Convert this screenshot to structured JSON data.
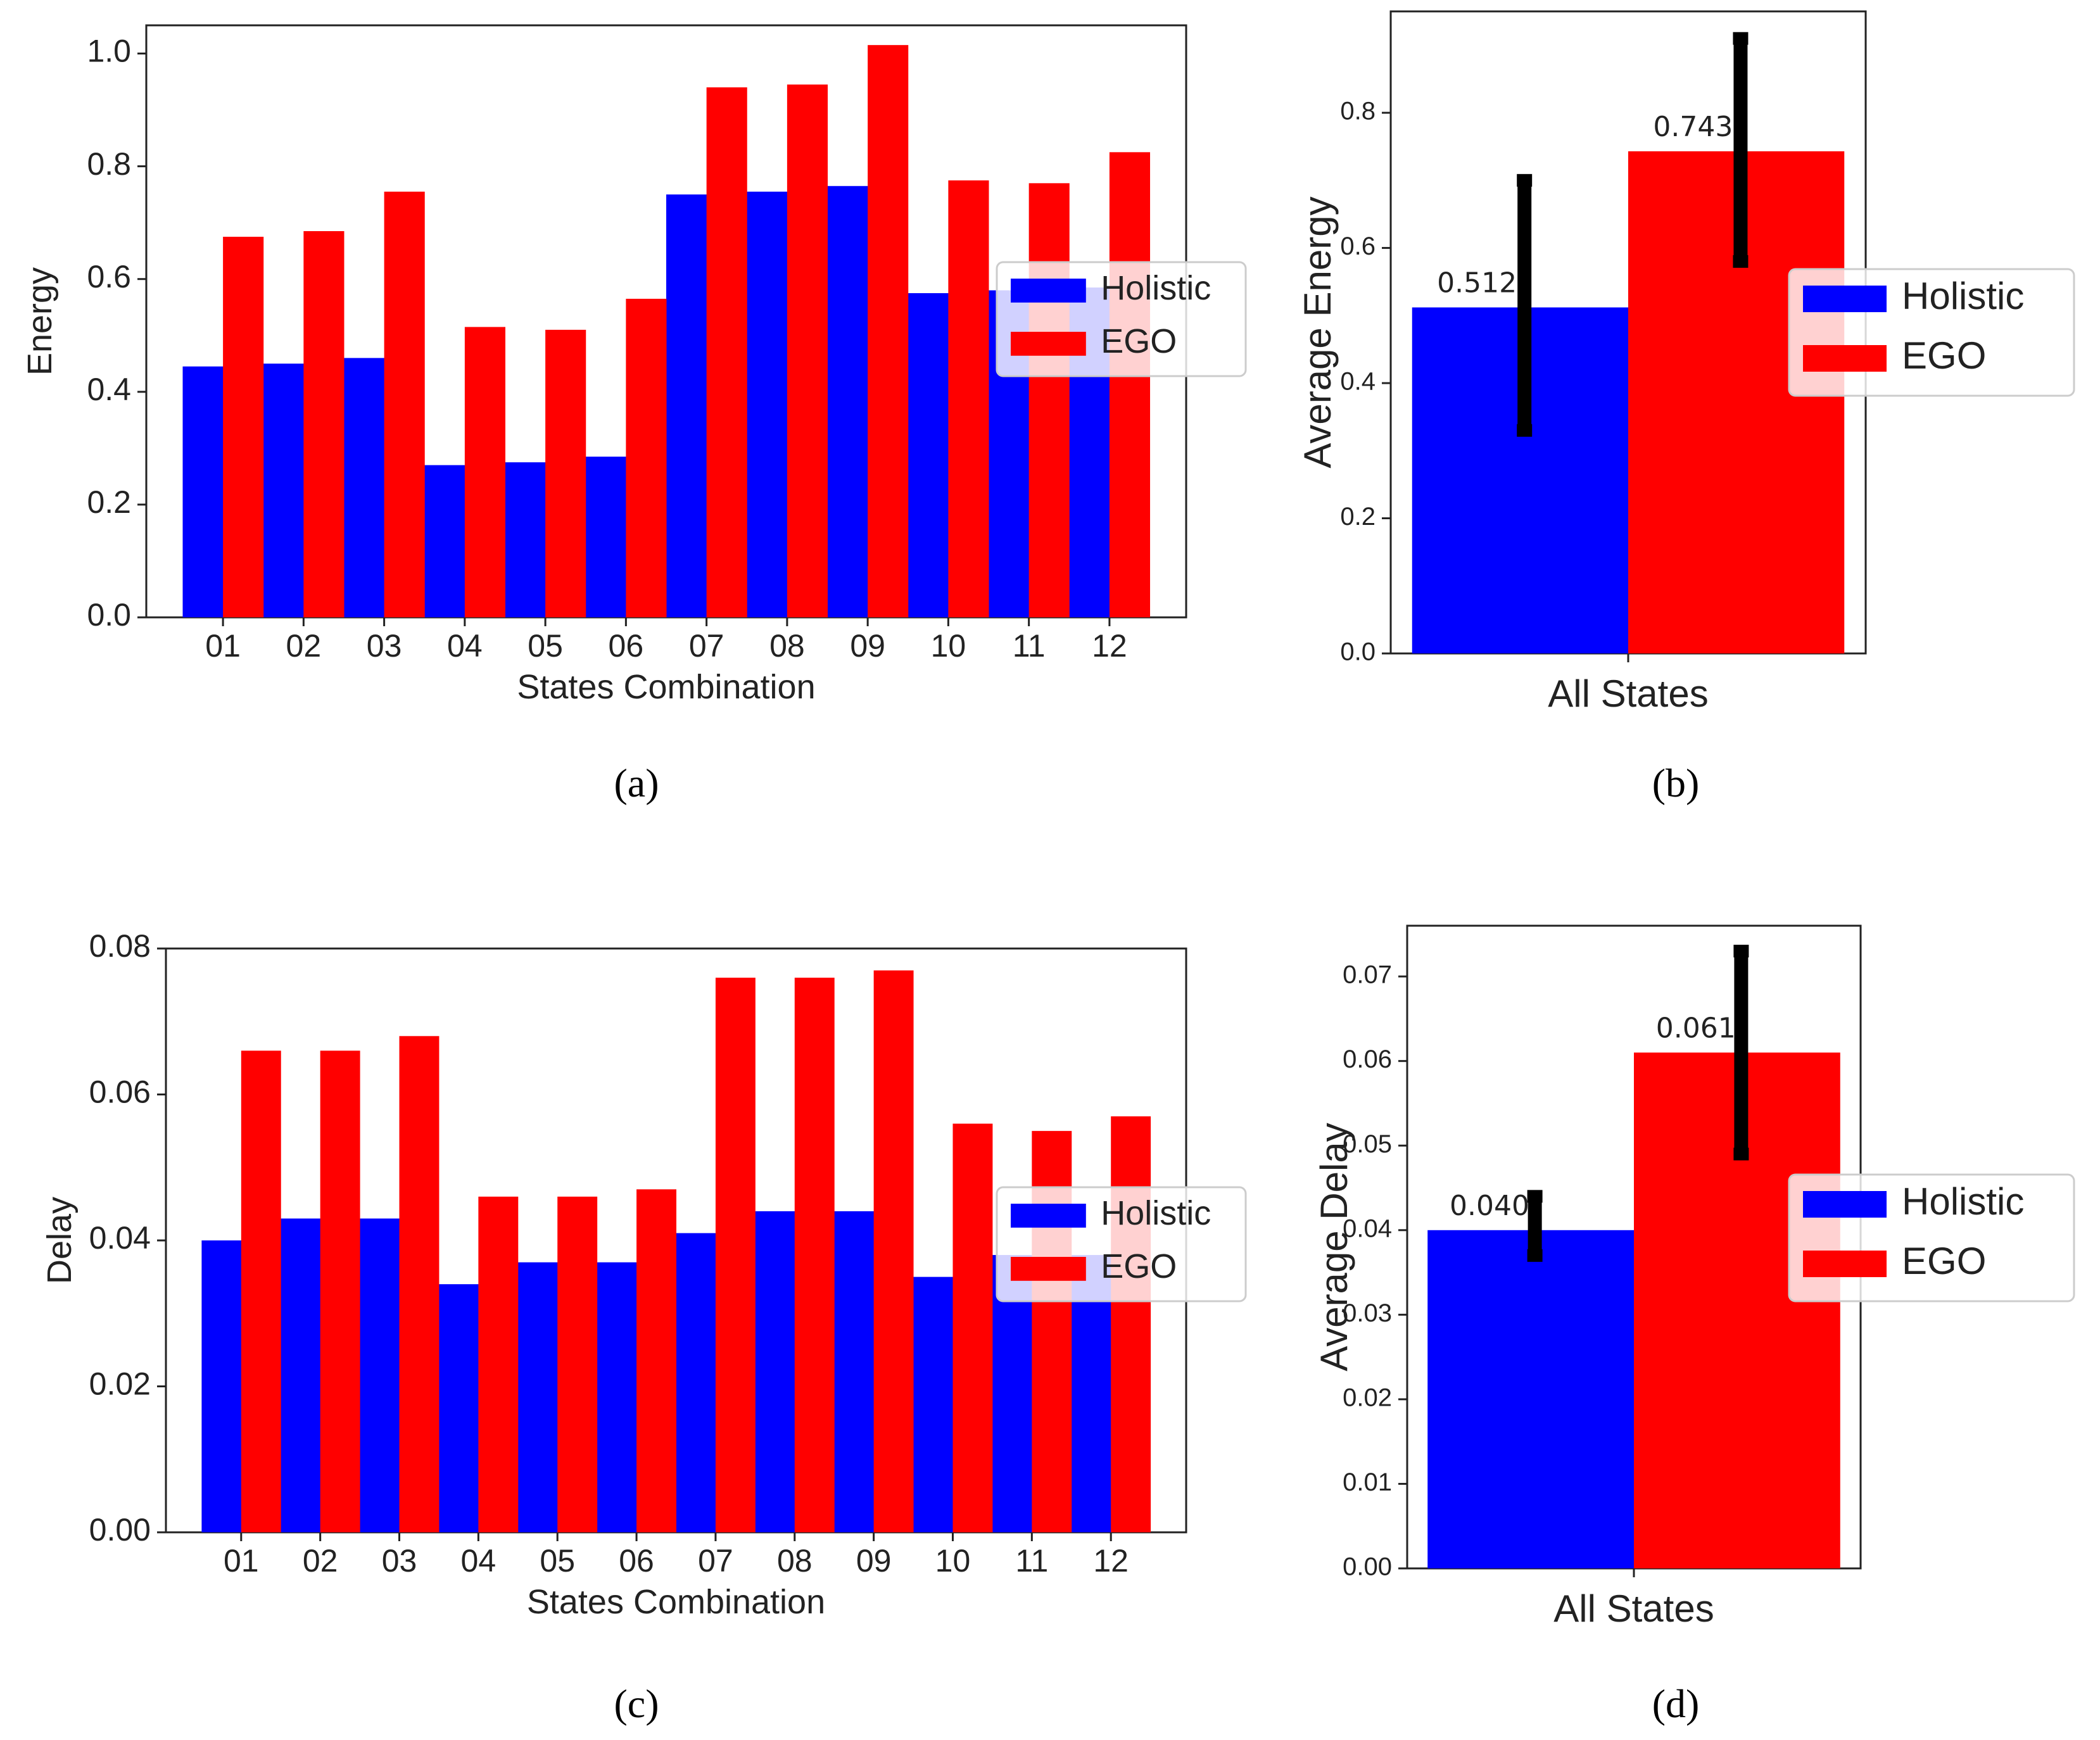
{
  "panels": [
    "(a)",
    "(b)",
    "(c)",
    "(d)"
  ],
  "chart_data": [
    {
      "id": "a",
      "type": "bar",
      "caption": "(a)",
      "xlabel": "States Combination",
      "ylabel": "Energy",
      "ylim": [
        0,
        1.05
      ],
      "yticks": [
        "0.0",
        "0.2",
        "0.4",
        "0.6",
        "0.8",
        "1.0"
      ],
      "ytick_values": [
        0,
        0.2,
        0.4,
        0.6,
        0.8,
        1.0
      ],
      "categories": [
        "01",
        "02",
        "03",
        "04",
        "05",
        "06",
        "07",
        "08",
        "09",
        "10",
        "11",
        "12"
      ],
      "series": [
        {
          "name": "Holistic",
          "color": "#0000ff",
          "values": [
            0.445,
            0.45,
            0.46,
            0.27,
            0.275,
            0.285,
            0.75,
            0.755,
            0.765,
            0.575,
            0.58,
            0.585
          ]
        },
        {
          "name": "EGO",
          "color": "#ff0000",
          "values": [
            0.675,
            0.685,
            0.755,
            0.515,
            0.51,
            0.565,
            0.94,
            0.945,
            1.015,
            0.775,
            0.77,
            0.825
          ]
        }
      ],
      "legend": [
        "Holistic",
        "EGO"
      ],
      "legend_position": "center-right"
    },
    {
      "id": "b",
      "type": "bar",
      "caption": "(b)",
      "xlabel": "All States",
      "ylabel": "Average Energy",
      "ylim": [
        0,
        0.95
      ],
      "yticks": [
        "0.0",
        "0.2",
        "0.4",
        "0.6",
        "0.8"
      ],
      "ytick_values": [
        0,
        0.2,
        0.4,
        0.6,
        0.8
      ],
      "series": [
        {
          "name": "Holistic",
          "color": "#0000ff",
          "value": 0.512,
          "label": "0.512",
          "error": [
            0.33,
            0.7
          ]
        },
        {
          "name": "EGO",
          "color": "#ff0000",
          "value": 0.743,
          "label": "0.743",
          "error": [
            0.58,
            0.91
          ]
        }
      ],
      "legend": [
        "Holistic",
        "EGO"
      ],
      "legend_position": "center-right"
    },
    {
      "id": "c",
      "type": "bar",
      "caption": "(c)",
      "xlabel": "States Combination",
      "ylabel": "Delay",
      "ylim": [
        0,
        0.08
      ],
      "yticks": [
        "0.00",
        "0.02",
        "0.04",
        "0.06",
        "0.08"
      ],
      "ytick_values": [
        0,
        0.02,
        0.04,
        0.06,
        0.08
      ],
      "categories": [
        "01",
        "02",
        "03",
        "04",
        "05",
        "06",
        "07",
        "08",
        "09",
        "10",
        "11",
        "12"
      ],
      "series": [
        {
          "name": "Holistic",
          "color": "#0000ff",
          "values": [
            0.04,
            0.043,
            0.043,
            0.034,
            0.037,
            0.037,
            0.041,
            0.044,
            0.044,
            0.035,
            0.038,
            0.038
          ]
        },
        {
          "name": "EGO",
          "color": "#ff0000",
          "values": [
            0.066,
            0.066,
            0.068,
            0.046,
            0.046,
            0.047,
            0.076,
            0.076,
            0.077,
            0.056,
            0.055,
            0.057
          ]
        }
      ],
      "legend": [
        "Holistic",
        "EGO"
      ],
      "legend_position": "center-right"
    },
    {
      "id": "d",
      "type": "bar",
      "caption": "(d)",
      "xlabel": "All States",
      "ylabel": "Average Delay",
      "ylim": [
        0,
        0.076
      ],
      "yticks": [
        "0.00",
        "0.01",
        "0.02",
        "0.03",
        "0.04",
        "0.05",
        "0.06",
        "0.07"
      ],
      "ytick_values": [
        0,
        0.01,
        0.02,
        0.03,
        0.04,
        0.05,
        0.06,
        0.07
      ],
      "series": [
        {
          "name": "Holistic",
          "color": "#0000ff",
          "value": 0.04,
          "label": "0.040",
          "error": [
            0.037,
            0.044
          ]
        },
        {
          "name": "EGO",
          "color": "#ff0000",
          "value": 0.061,
          "label": "0.061",
          "error": [
            0.049,
            0.073
          ]
        }
      ],
      "legend": [
        "Holistic",
        "EGO"
      ],
      "legend_position": "center-right"
    }
  ]
}
